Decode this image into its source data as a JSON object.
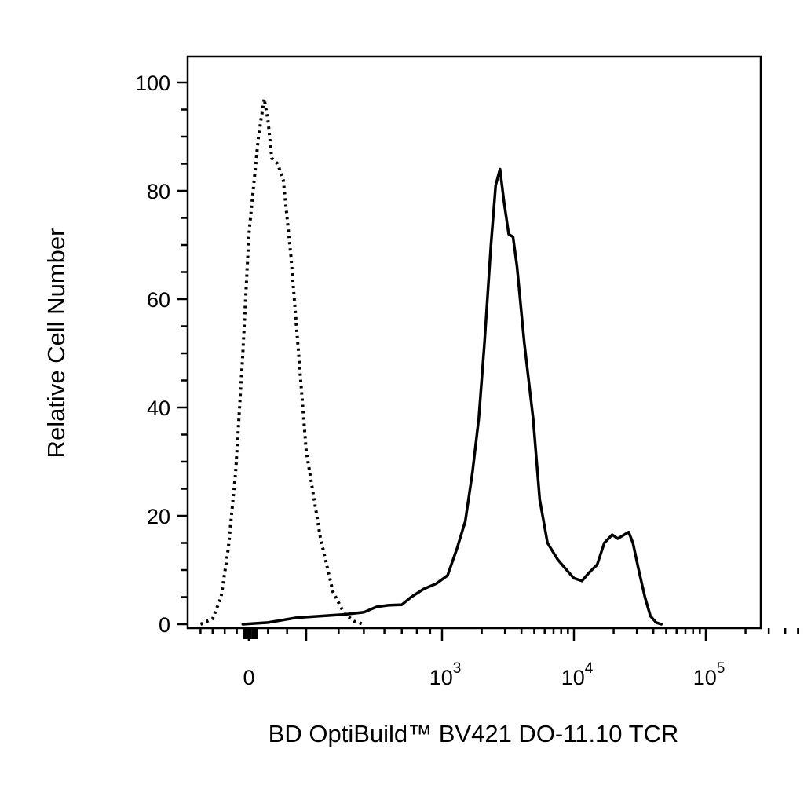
{
  "chart_data": {
    "type": "line",
    "title": "",
    "xlabel": "BD OptiBuild™ BV421 DO-11.10 TCR",
    "ylabel": "Relative Cell Number",
    "x_scale": "biexponential",
    "ylim": [
      0,
      100
    ],
    "yticks": [
      {
        "value": 0,
        "label": "0"
      },
      {
        "value": 20,
        "label": "20"
      },
      {
        "value": 40,
        "label": "40"
      },
      {
        "value": 60,
        "label": "60"
      },
      {
        "value": 80,
        "label": "80"
      },
      {
        "value": 100,
        "label": "100"
      }
    ],
    "xticks": [
      {
        "value": 0,
        "base": "0",
        "exp": ""
      },
      {
        "value": 1000,
        "base": "10",
        "exp": "3"
      },
      {
        "value": 10000,
        "base": "10",
        "exp": "4"
      },
      {
        "value": 100000,
        "base": "10",
        "exp": "5"
      }
    ],
    "grid": false,
    "legend": "none",
    "series": [
      {
        "style": "dotted",
        "color": "#000000",
        "points": [
          [
            -400,
            0
          ],
          [
            -300,
            1
          ],
          [
            -230,
            5
          ],
          [
            -170,
            14
          ],
          [
            -110,
            28
          ],
          [
            -50,
            50
          ],
          [
            0,
            72
          ],
          [
            50,
            90
          ],
          [
            80,
            97
          ],
          [
            100,
            93
          ],
          [
            120,
            86
          ],
          [
            150,
            85
          ],
          [
            180,
            82
          ],
          [
            220,
            68
          ],
          [
            260,
            50
          ],
          [
            300,
            32
          ],
          [
            340,
            16
          ],
          [
            380,
            6
          ],
          [
            420,
            2
          ],
          [
            460,
            0.5
          ],
          [
            500,
            0
          ]
        ]
      },
      {
        "style": "solid",
        "color": "#000000",
        "points": [
          [
            -50,
            0
          ],
          [
            100,
            0.3
          ],
          [
            250,
            1.2
          ],
          [
            420,
            1.8
          ],
          [
            500,
            2.2
          ],
          [
            560,
            3.2
          ],
          [
            620,
            3.5
          ],
          [
            700,
            3.6
          ],
          [
            760,
            5
          ],
          [
            850,
            6.5
          ],
          [
            950,
            7.5
          ],
          [
            1100,
            9
          ],
          [
            1300,
            14
          ],
          [
            1500,
            19
          ],
          [
            1700,
            28
          ],
          [
            1900,
            38
          ],
          [
            2100,
            52
          ],
          [
            2350,
            70
          ],
          [
            2550,
            81
          ],
          [
            2750,
            84
          ],
          [
            2950,
            78
          ],
          [
            3200,
            72
          ],
          [
            3450,
            71.5
          ],
          [
            3700,
            66
          ],
          [
            4200,
            52
          ],
          [
            4900,
            38
          ],
          [
            5500,
            23
          ],
          [
            6300,
            15
          ],
          [
            7500,
            12
          ],
          [
            8800,
            10
          ],
          [
            10000,
            8.5
          ],
          [
            11500,
            8
          ],
          [
            13000,
            9.5
          ],
          [
            15000,
            11
          ],
          [
            17000,
            15
          ],
          [
            19500,
            16.5
          ],
          [
            21500,
            15.8
          ],
          [
            24000,
            16.5
          ],
          [
            26000,
            17
          ],
          [
            28000,
            15
          ],
          [
            31000,
            10
          ],
          [
            34500,
            5
          ],
          [
            38000,
            1.5
          ],
          [
            42000,
            0.3
          ],
          [
            46000,
            0
          ]
        ]
      }
    ]
  }
}
